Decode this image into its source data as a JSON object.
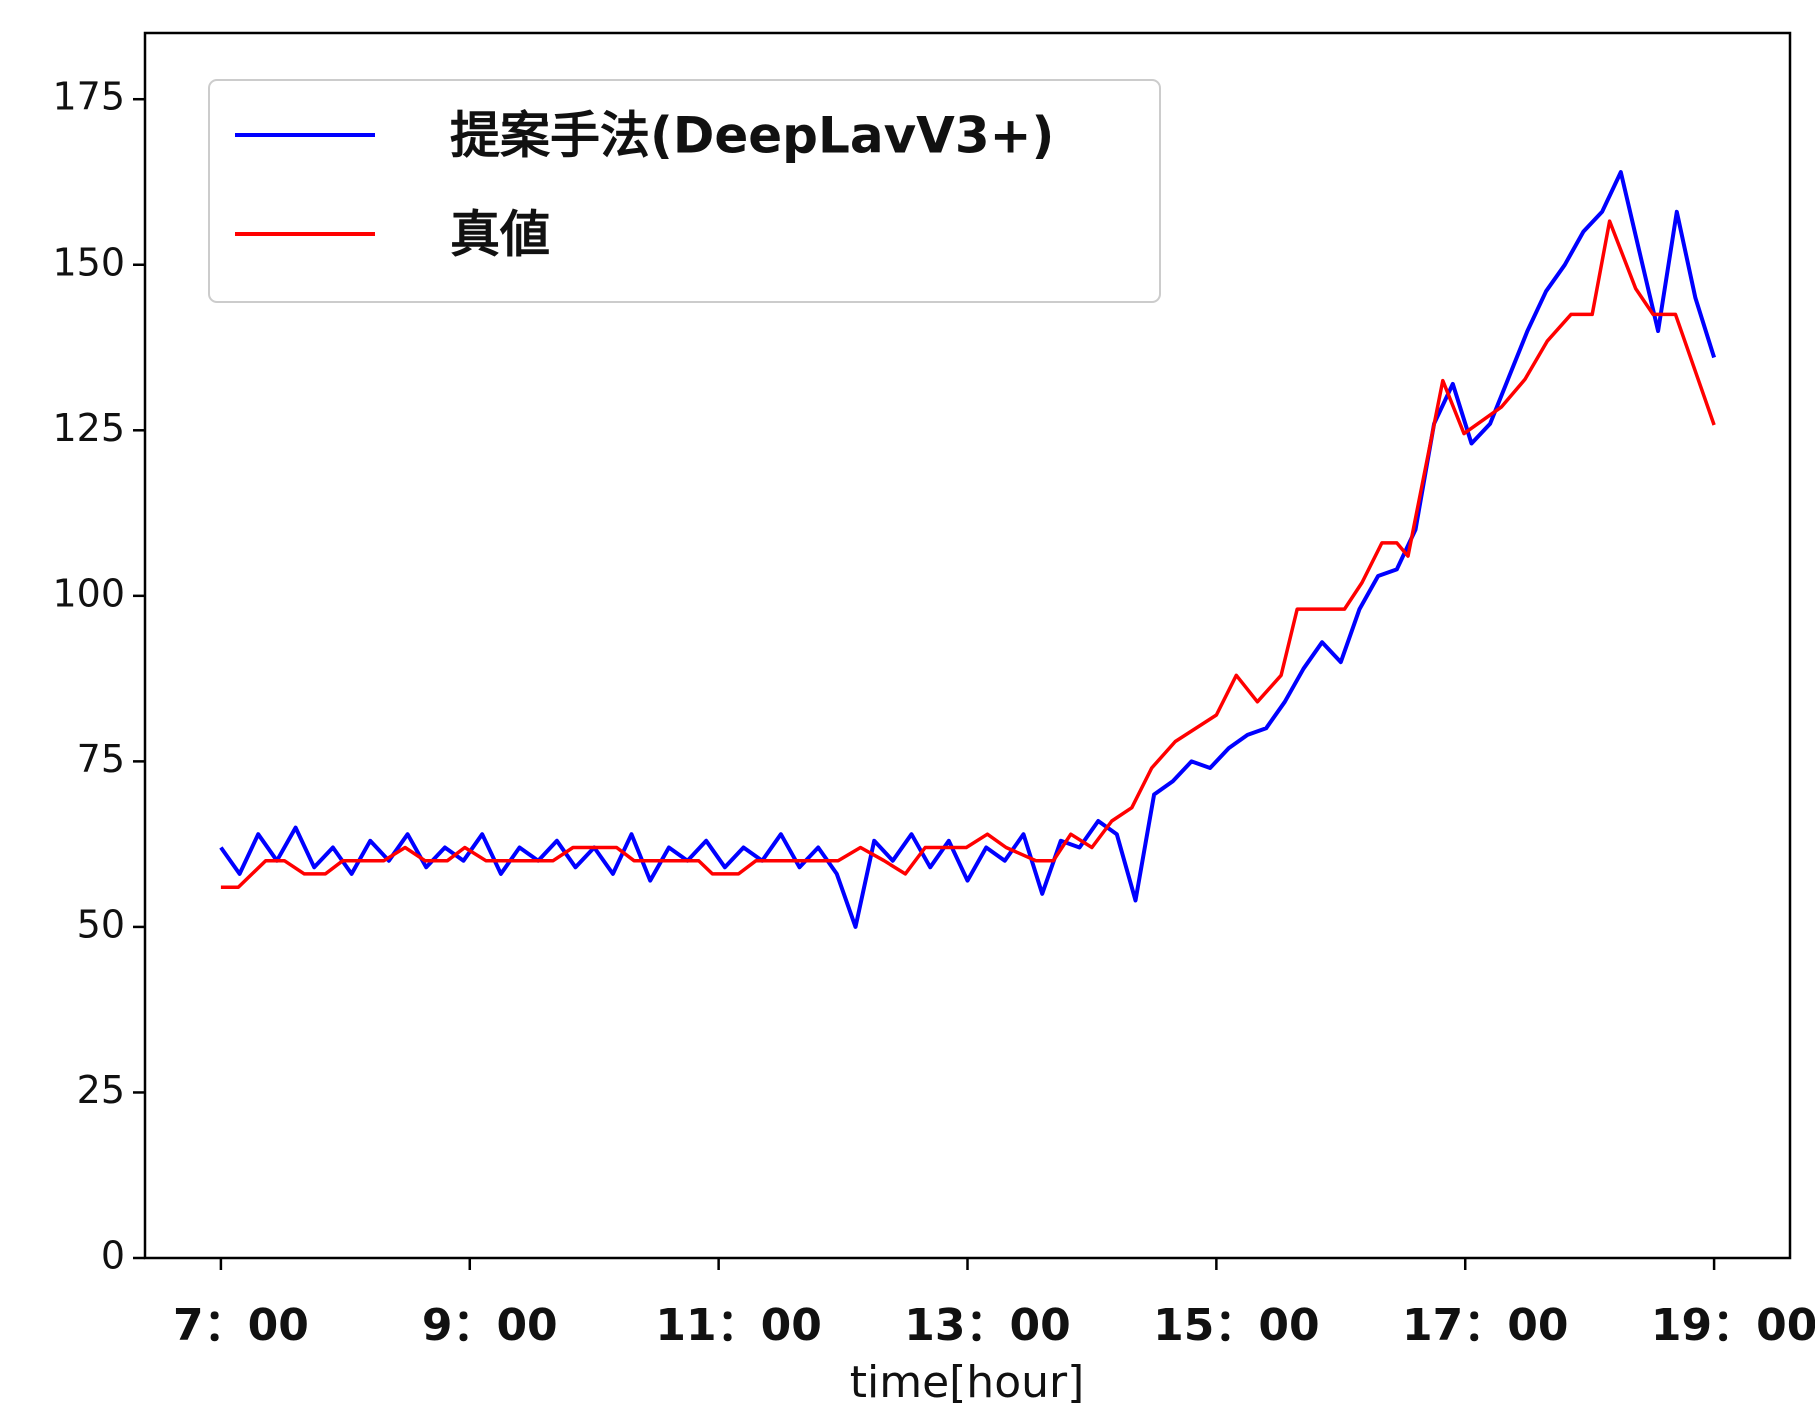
{
  "chart_data": {
    "type": "line",
    "x_label": "time[hour]",
    "xlim": [
      6.39,
      19.61
    ],
    "ylim": [
      0,
      185
    ],
    "xticks": [
      {
        "value": 7,
        "label": "7：00"
      },
      {
        "value": 9,
        "label": "9：00"
      },
      {
        "value": 11,
        "label": "11：00"
      },
      {
        "value": 13,
        "label": "13：00"
      },
      {
        "value": 15,
        "label": "15：00"
      },
      {
        "value": 17,
        "label": "17：00"
      },
      {
        "value": 19,
        "label": "19：00"
      }
    ],
    "yticks": [
      0,
      25,
      50,
      75,
      100,
      125,
      150,
      175
    ],
    "grid": false,
    "legend": "upper left",
    "series": [
      {
        "name": "提案手法(DeepLavV3+)",
        "color": "#0000ff",
        "x": [
          7.0,
          7.15,
          7.3,
          7.45,
          7.6,
          7.75,
          7.9,
          8.05,
          8.2,
          8.35,
          8.5,
          8.65,
          8.8,
          8.95,
          9.1,
          9.25,
          9.4,
          9.55,
          9.7,
          9.85,
          10.0,
          10.15,
          10.3,
          10.45,
          10.6,
          10.75,
          10.9,
          11.05,
          11.2,
          11.35,
          11.5,
          11.65,
          11.8,
          11.95,
          12.1,
          12.25,
          12.4,
          12.55,
          12.7,
          12.85,
          13.0,
          13.15,
          13.3,
          13.45,
          13.6,
          13.75,
          13.9,
          14.05,
          14.2,
          14.35,
          14.5,
          14.65,
          14.8,
          14.95,
          15.1,
          15.25,
          15.4,
          15.55,
          15.7,
          15.85,
          16.0,
          16.15,
          16.3,
          16.45,
          16.6,
          16.75,
          16.9,
          17.05,
          17.2,
          17.35,
          17.5,
          17.65,
          17.8,
          17.95,
          18.1,
          18.25,
          18.4,
          18.55,
          18.7,
          18.85,
          19.0
        ],
        "values": [
          62,
          58,
          64,
          60,
          65,
          59,
          62,
          58,
          63,
          60,
          64,
          59,
          62,
          60,
          64,
          58,
          62,
          60,
          63,
          59,
          62,
          58,
          64,
          57,
          62,
          60,
          63,
          59,
          62,
          60,
          64,
          59,
          62,
          58,
          50,
          63,
          60,
          64,
          59,
          63,
          57,
          62,
          60,
          64,
          55,
          63,
          62,
          66,
          64,
          54,
          70,
          72,
          75,
          74,
          77,
          79,
          80,
          84,
          89,
          93,
          90,
          98,
          103,
          104,
          110,
          126,
          132,
          123,
          126,
          133,
          140,
          146,
          150,
          155,
          158,
          164,
          152,
          140,
          158,
          145,
          136
        ]
      },
      {
        "name": "真値",
        "color": "#ff0000",
        "x": [
          7.0,
          7.14,
          7.36,
          7.51,
          7.67,
          7.84,
          7.98,
          8.31,
          8.48,
          8.64,
          8.82,
          8.96,
          9.13,
          9.67,
          9.83,
          10.18,
          10.32,
          10.84,
          10.95,
          11.16,
          11.3,
          11.96,
          12.14,
          12.33,
          12.5,
          12.66,
          12.99,
          13.16,
          13.31,
          13.55,
          13.69,
          13.83,
          14.0,
          14.16,
          14.32,
          14.48,
          14.67,
          15.0,
          15.16,
          15.33,
          15.52,
          15.65,
          16.03,
          16.17,
          16.33,
          16.45,
          16.54,
          16.82,
          16.99,
          17.29,
          17.48,
          17.66,
          17.85,
          18.02,
          18.16,
          18.37,
          18.51,
          18.69,
          19.0
        ],
        "values": [
          56,
          56,
          60,
          60,
          58,
          58,
          60,
          60,
          62,
          60,
          60,
          62,
          60,
          60,
          62,
          62,
          60,
          60,
          58,
          58,
          60,
          60,
          62,
          60,
          58,
          62,
          62,
          64,
          62,
          60,
          60,
          64,
          62,
          66,
          68,
          74,
          78,
          82,
          88,
          84,
          88,
          98,
          98,
          102,
          108,
          108,
          106,
          132.5,
          124.5,
          128.5,
          132.7,
          138.5,
          142.5,
          142.5,
          156.6,
          146.4,
          142.5,
          142.5,
          125.8
        ]
      }
    ]
  }
}
